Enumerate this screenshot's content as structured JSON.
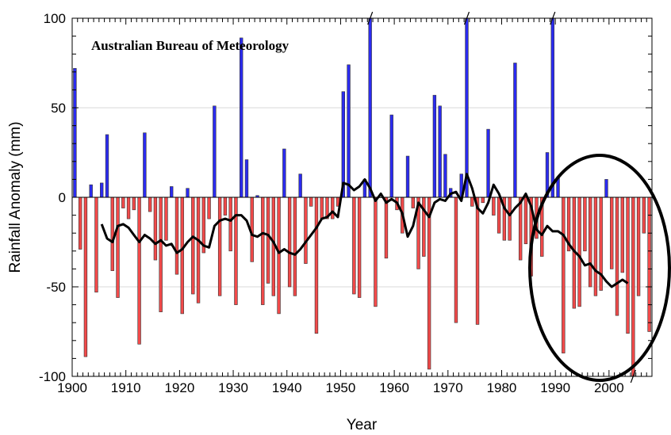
{
  "chart_data": {
    "type": "bar",
    "annotation": "Australian Bureau of Meteorology",
    "xlabel": "Year",
    "ylabel": "Rainfall Anomaly (mm)",
    "xlim": [
      1900,
      2008
    ],
    "ylim": [
      -100,
      100
    ],
    "x_ticks": [
      "1900",
      "1910",
      "1920",
      "1930",
      "1940",
      "1950",
      "1960",
      "1970",
      "1980",
      "1990",
      "2000"
    ],
    "y_ticks": [
      "100",
      "50",
      "0",
      "-50",
      "-100"
    ],
    "colors": {
      "positive": "#2b2bf0",
      "negative": "#f24a4a",
      "trend": "#000000",
      "circle": "#000000"
    },
    "series": [
      {
        "type": "bar",
        "x": [
          1900,
          1901,
          1902,
          1903,
          1904,
          1905,
          1906,
          1907,
          1908,
          1909,
          1910,
          1911,
          1912,
          1913,
          1914,
          1915,
          1916,
          1917,
          1918,
          1919,
          1920,
          1921,
          1922,
          1923,
          1924,
          1925,
          1926,
          1927,
          1928,
          1929,
          1930,
          1931,
          1932,
          1933,
          1934,
          1935,
          1936,
          1937,
          1938,
          1939,
          1940,
          1941,
          1942,
          1943,
          1944,
          1945,
          1946,
          1947,
          1948,
          1949,
          1950,
          1951,
          1952,
          1953,
          1954,
          1955,
          1956,
          1957,
          1958,
          1959,
          1960,
          1961,
          1962,
          1963,
          1964,
          1965,
          1966,
          1967,
          1968,
          1969,
          1970,
          1971,
          1972,
          1973,
          1974,
          1975,
          1976,
          1977,
          1978,
          1979,
          1980,
          1981,
          1982,
          1983,
          1984,
          1985,
          1986,
          1987,
          1988,
          1989,
          1990,
          1991,
          1992,
          1993,
          1994,
          1995,
          1996,
          1997,
          1998,
          1999,
          2000,
          2001,
          2002,
          2003,
          2004,
          2005,
          2006,
          2007
        ],
        "values": [
          72,
          -29,
          -89,
          7,
          -53,
          8,
          35,
          -41,
          -56,
          -6,
          -12,
          -7,
          -82,
          36,
          -8,
          -35,
          -64,
          -24,
          6,
          -43,
          -65,
          5,
          -54,
          -59,
          -31,
          -12,
          51,
          -55,
          -10,
          -30,
          -60,
          89,
          21,
          -36,
          1,
          -60,
          -48,
          -55,
          -65,
          27,
          -50,
          -55,
          13,
          -37,
          -5,
          -76,
          -12,
          -12,
          -12,
          -5,
          59,
          74,
          -54,
          -56,
          10,
          100,
          -61,
          0,
          -34,
          46,
          -7,
          -20,
          23,
          -6,
          -40,
          -33,
          -96,
          57,
          51,
          24,
          5,
          -70,
          13,
          100,
          -5,
          -71,
          -3,
          38,
          -10,
          -20,
          -24,
          -24,
          75,
          -35,
          -26,
          -44,
          -23,
          -33,
          25,
          100,
          11,
          -87,
          -30,
          -62,
          -61,
          -30,
          -50,
          -55,
          -52,
          10,
          -40,
          -66,
          -42,
          -76,
          -100,
          -55,
          -20,
          -75
        ]
      },
      {
        "type": "line",
        "name": "",
        "x": [
          1905,
          1906,
          1907,
          1908,
          1909,
          1910,
          1911,
          1912,
          1913,
          1914,
          1915,
          1916,
          1917,
          1918,
          1919,
          1920,
          1921,
          1922,
          1923,
          1924,
          1925,
          1926,
          1927,
          1928,
          1929,
          1930,
          1931,
          1932,
          1933,
          1934,
          1935,
          1936,
          1937,
          1938,
          1939,
          1940,
          1941,
          1942,
          1943,
          1944,
          1945,
          1946,
          1947,
          1948,
          1949,
          1950,
          1951,
          1952,
          1953,
          1954,
          1955,
          1956,
          1957,
          1958,
          1959,
          1960,
          1961,
          1962,
          1963,
          1964,
          1965,
          1966,
          1967,
          1968,
          1969,
          1970,
          1971,
          1972,
          1973,
          1974,
          1975,
          1976,
          1977,
          1978,
          1979,
          1980,
          1981,
          1982,
          1983,
          1984,
          1985,
          1986,
          1987,
          1988,
          1989,
          1990,
          1991,
          1992,
          1993,
          1994,
          1995,
          1996,
          1997,
          1998,
          1999,
          2000,
          2001,
          2002,
          2003
        ],
        "values": [
          -15,
          -23,
          -25,
          -16,
          -15,
          -17,
          -21,
          -25,
          -21,
          -23,
          -26,
          -24,
          -27,
          -26,
          -31,
          -29,
          -25,
          -22,
          -24,
          -27,
          -28,
          -16,
          -13,
          -12,
          -13,
          -10,
          -10,
          -13,
          -21,
          -22,
          -20,
          -21,
          -25,
          -31,
          -29,
          -31,
          -32,
          -29,
          -25,
          -21,
          -17,
          -12,
          -11,
          -8,
          -11,
          8,
          7,
          4,
          6,
          10,
          5,
          -2,
          2,
          -3,
          -1,
          -3,
          -9,
          -22,
          -16,
          -3,
          -7,
          -11,
          -3,
          -1,
          -2,
          2,
          3,
          -2,
          13,
          5,
          -6,
          -9,
          -3,
          7,
          2,
          -6,
          -10,
          -6,
          -3,
          2,
          -5,
          -18,
          -21,
          -16,
          -19,
          -19,
          -21,
          -26,
          -30,
          -33,
          -38,
          -37,
          -41,
          -43,
          -47,
          -50,
          -48,
          -46,
          -48
        ]
      }
    ]
  }
}
